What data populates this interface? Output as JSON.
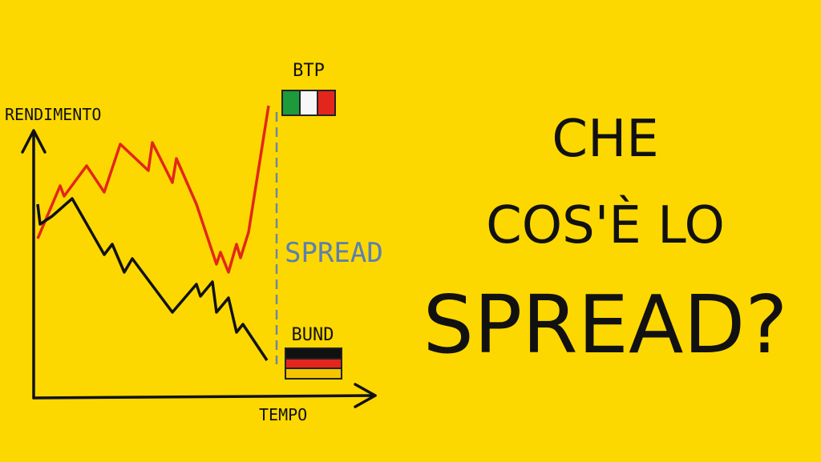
{
  "illustration": {
    "y_axis_label": "RENDIMENTO",
    "x_axis_label": "TEMPO",
    "top_label": "BTP",
    "bottom_label": "BUND",
    "gap_label": "SPREAD"
  },
  "headline": {
    "line1": "CHE",
    "line2": "COS'È LO",
    "line3": "SPREAD?"
  }
}
